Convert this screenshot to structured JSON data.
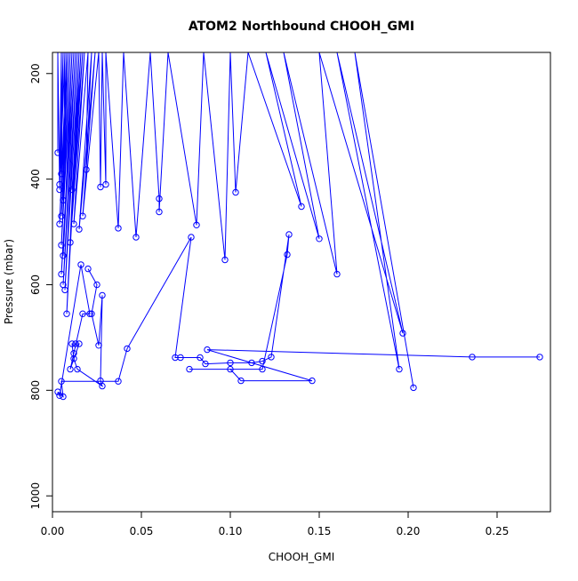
{
  "chart_data": {
    "type": "line",
    "title": "ATOM2 Northbound CHOOH_GMI",
    "xlabel": "CHOOH_GMI",
    "ylabel": "Pressure (mbar)",
    "xlim": [
      0.0,
      0.28
    ],
    "ylim": [
      1030,
      160
    ],
    "y_reversed": true,
    "grid": false,
    "legend": "none",
    "x_ticks": [
      0.0,
      0.05,
      0.1,
      0.15,
      0.2,
      0.25
    ],
    "x_tick_labels": [
      "0.00",
      "0.05",
      "0.10",
      "0.15",
      "0.20",
      "0.25"
    ],
    "y_ticks": [
      200,
      400,
      600,
      800,
      1000
    ],
    "y_tick_labels": [
      "200",
      "400",
      "600",
      "800",
      "1000"
    ],
    "series": [
      {
        "color": "#0000ff",
        "marker": "open-circle",
        "points": [
          [
            0.003,
            160
          ],
          [
            0.003,
            350
          ],
          [
            0.003,
            160
          ],
          [
            0.004,
            410
          ],
          [
            0.005,
            160
          ],
          [
            0.005,
            390
          ],
          [
            0.006,
            160
          ],
          [
            0.004,
            420
          ],
          [
            0.007,
            160
          ],
          [
            0.006,
            440
          ],
          [
            0.008,
            160
          ],
          [
            0.004,
            485
          ],
          [
            0.009,
            160
          ],
          [
            0.005,
            470
          ],
          [
            0.01,
            160
          ],
          [
            0.005,
            525
          ],
          [
            0.011,
            160
          ],
          [
            0.006,
            545
          ],
          [
            0.012,
            160
          ],
          [
            0.005,
            580
          ],
          [
            0.013,
            160
          ],
          [
            0.006,
            600
          ],
          [
            0.014,
            160
          ],
          [
            0.007,
            610
          ],
          [
            0.015,
            160
          ],
          [
            0.008,
            655
          ],
          [
            0.016,
            160
          ],
          [
            0.011,
            420
          ],
          [
            0.017,
            160
          ],
          [
            0.01,
            520
          ],
          [
            0.018,
            160
          ],
          [
            0.012,
            485
          ],
          [
            0.02,
            160
          ],
          [
            0.019,
            382
          ],
          [
            0.022,
            160
          ],
          [
            0.015,
            495
          ],
          [
            0.024,
            160
          ],
          [
            0.017,
            470
          ],
          [
            0.026,
            160
          ],
          [
            0.027,
            415
          ],
          [
            0.028,
            160
          ],
          [
            0.03,
            410
          ],
          [
            0.03,
            160
          ],
          [
            0.037,
            493
          ],
          [
            0.04,
            160
          ],
          [
            0.047,
            510
          ],
          [
            0.055,
            160
          ],
          [
            0.06,
            437
          ],
          [
            0.06,
            462
          ],
          [
            0.065,
            160
          ],
          [
            0.081,
            487
          ],
          [
            0.085,
            160
          ],
          [
            0.097,
            553
          ],
          [
            0.1,
            160
          ],
          [
            0.103,
            425
          ],
          [
            0.11,
            160
          ],
          [
            0.14,
            452
          ],
          [
            0.12,
            160
          ],
          [
            0.15,
            513
          ],
          [
            0.13,
            160
          ],
          [
            0.16,
            580
          ],
          [
            0.15,
            160
          ],
          [
            0.197,
            692
          ],
          [
            0.16,
            160
          ],
          [
            0.195,
            760
          ],
          [
            0.17,
            160
          ],
          [
            0.203,
            795
          ]
        ]
      },
      {
        "color": "#0000ff",
        "marker": "open-circle",
        "points": [
          [
            0.02,
            570
          ],
          [
            0.025,
            600
          ],
          [
            0.022,
            655
          ],
          [
            0.026,
            715
          ],
          [
            0.028,
            620
          ],
          [
            0.027,
            782
          ],
          [
            0.028,
            792
          ],
          [
            0.014,
            760
          ],
          [
            0.012,
            740
          ],
          [
            0.011,
            712
          ],
          [
            0.013,
            712
          ],
          [
            0.015,
            712
          ],
          [
            0.01,
            760
          ],
          [
            0.012,
            730
          ],
          [
            0.017,
            655
          ],
          [
            0.021,
            655
          ],
          [
            0.016,
            562
          ],
          [
            0.004,
            810
          ],
          [
            0.003,
            803
          ],
          [
            0.006,
            812
          ],
          [
            0.005,
            783
          ],
          [
            0.037,
            783
          ],
          [
            0.042,
            721
          ],
          [
            0.078,
            510
          ],
          [
            0.069,
            738
          ],
          [
            0.072,
            738
          ],
          [
            0.083,
            738
          ],
          [
            0.086,
            750
          ],
          [
            0.1,
            748
          ],
          [
            0.112,
            748
          ],
          [
            0.118,
            745
          ],
          [
            0.123,
            737
          ],
          [
            0.133,
            505
          ],
          [
            0.132,
            543
          ],
          [
            0.118,
            760
          ],
          [
            0.077,
            760
          ],
          [
            0.1,
            760
          ],
          [
            0.106,
            782
          ],
          [
            0.146,
            782
          ],
          [
            0.087,
            723
          ],
          [
            0.236,
            737
          ],
          [
            0.274,
            737
          ]
        ]
      }
    ]
  }
}
